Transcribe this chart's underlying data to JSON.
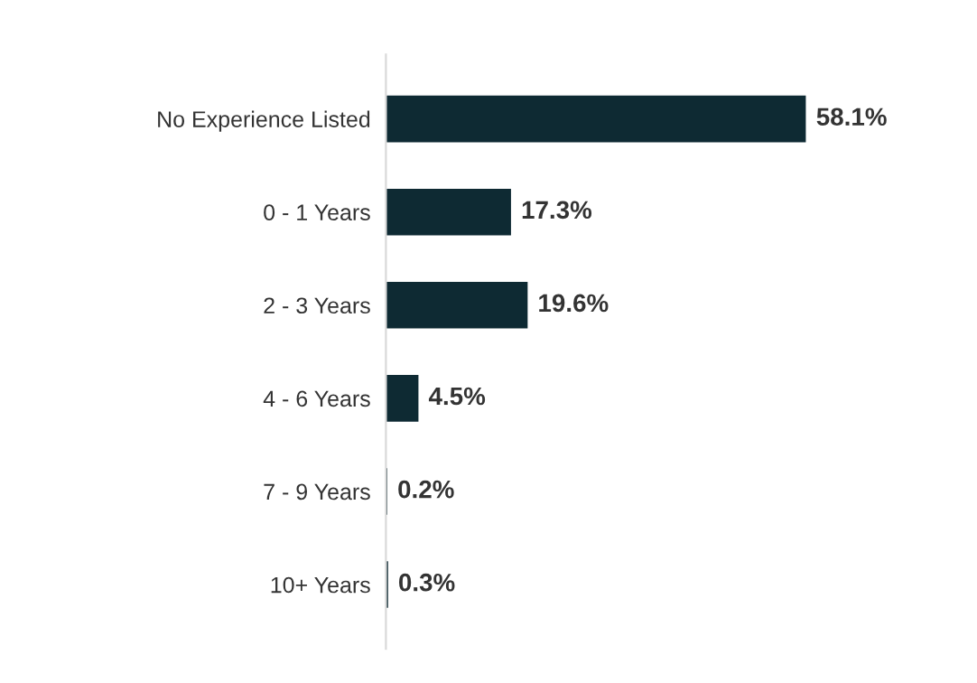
{
  "chart_data": {
    "type": "bar",
    "orientation": "horizontal",
    "categories": [
      "No Experience Listed",
      "0 - 1 Years",
      "2 - 3 Years",
      "4 - 6 Years",
      "7 - 9 Years",
      "10+ Years"
    ],
    "values": [
      58.1,
      17.3,
      19.6,
      4.5,
      0.2,
      0.3
    ],
    "value_labels": [
      "58.1%",
      "17.3%",
      "19.6%",
      "4.5%",
      "0.2%",
      "0.3%"
    ],
    "color": "#0e2a33",
    "grid": false,
    "legend": false
  }
}
